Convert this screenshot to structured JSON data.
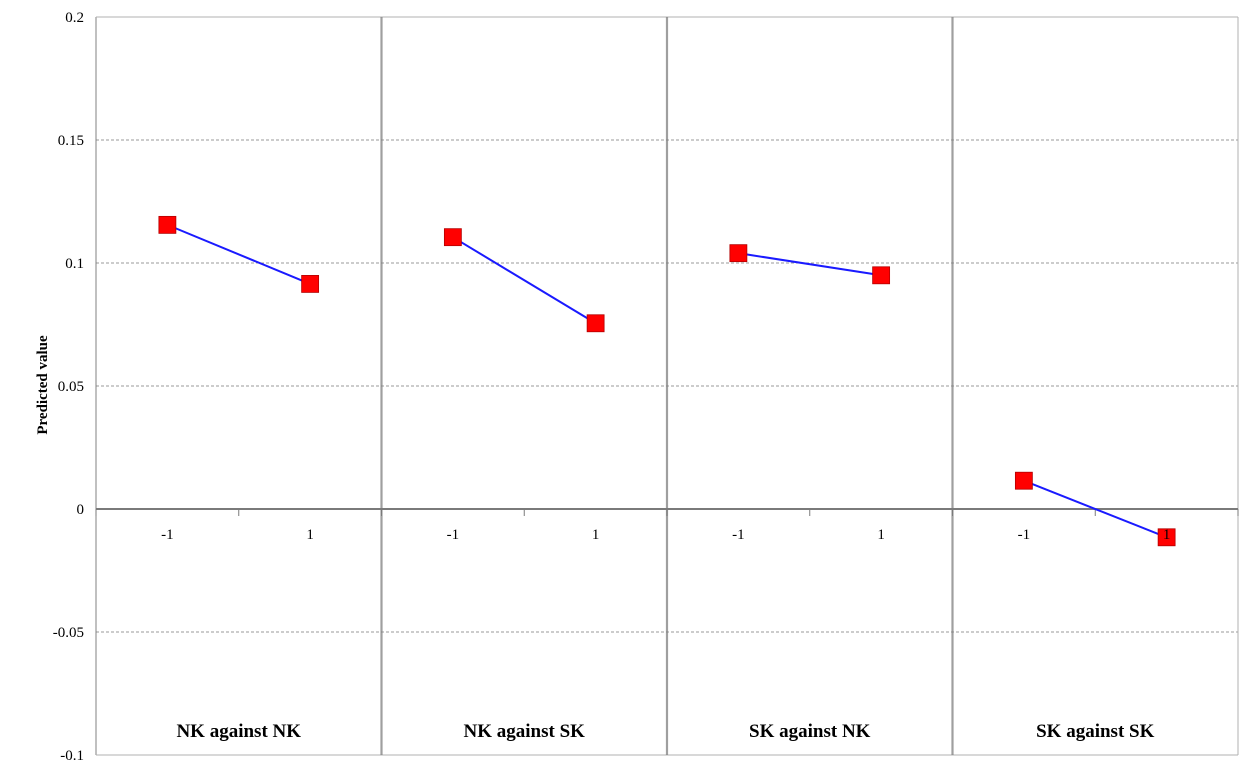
{
  "chart_data": {
    "type": "line",
    "ylabel": "Predicted value",
    "ylim": [
      -0.1,
      0.2
    ],
    "y_ticks": [
      {
        "value": 0.2,
        "label": "0.2"
      },
      {
        "value": 0.15,
        "label": "0.15"
      },
      {
        "value": 0.1,
        "label": "0.1"
      },
      {
        "value": 0.05,
        "label": "0.05"
      },
      {
        "value": 0,
        "label": "0"
      },
      {
        "value": -0.05,
        "label": "-0.05"
      },
      {
        "value": -0.1,
        "label": "-0.1"
      }
    ],
    "grid": true,
    "legend": "none",
    "colors": {
      "line": "#1a1aff",
      "marker": "#ff0000",
      "marker_edge": "#b30000",
      "grid": "#999999",
      "divider": "#808080"
    },
    "panels": [
      {
        "title": "NK against NK",
        "x": [
          "-1",
          "1"
        ],
        "values": [
          0.1155,
          0.0915
        ]
      },
      {
        "title": "NK against SK",
        "x": [
          "-1",
          "1"
        ],
        "values": [
          0.1105,
          0.0755
        ]
      },
      {
        "title": "SK against NK",
        "x": [
          "-1",
          "1"
        ],
        "values": [
          0.104,
          0.095
        ]
      },
      {
        "title": "SK against SK",
        "x": [
          "-1",
          "1"
        ],
        "values": [
          0.0115,
          -0.0115
        ]
      }
    ]
  }
}
